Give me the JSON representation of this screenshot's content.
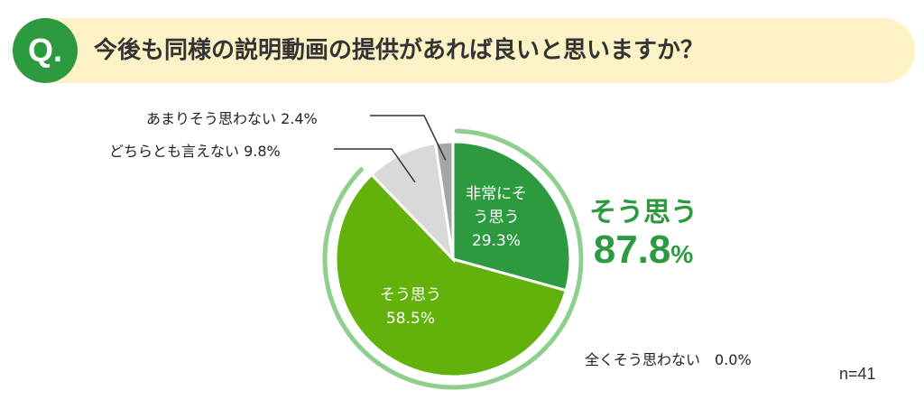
{
  "question": {
    "badge": "Q.",
    "text": "今後も同様の説明動画の提供があれば良いと思いますか？"
  },
  "chart_data": {
    "type": "pie",
    "slices": [
      {
        "name": "非常にそう思う",
        "value": 29.3,
        "label_line1": "非常にそ",
        "label_line2": "う思う",
        "value_text": "29.3%",
        "color": "#2e9a40"
      },
      {
        "name": "そう思う",
        "value": 58.5,
        "label_line1": "そう思う",
        "label_line2": "",
        "value_text": "58.5%",
        "color": "#63b20c"
      },
      {
        "name": "どちらとも言えない",
        "value": 9.8,
        "callout": "どちらとも言えない 9.8%",
        "color": "#d9d9d9"
      },
      {
        "name": "あまりそう思わない",
        "value": 2.4,
        "callout": "あまりそう思わない 2.4%",
        "color": "#a6a6a6"
      },
      {
        "name": "全くそう思わない",
        "value": 0.0,
        "callout": "全くそう思わない　0.0%",
        "color": "#7f7f7f"
      }
    ],
    "summary": {
      "label": "そう思う",
      "value": "87.8",
      "unit": "%",
      "arc_color": "#8ecf8f"
    },
    "sample_size": "n=41"
  }
}
